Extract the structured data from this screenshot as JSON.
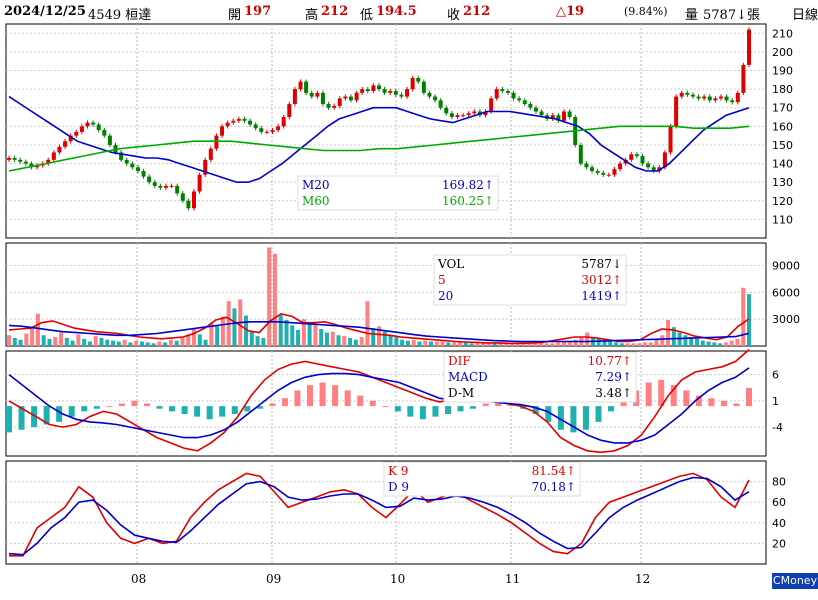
{
  "header": {
    "date": "2024/12/25",
    "stock": "4549 桓達",
    "open_label": "開",
    "open": "197",
    "high_label": "高",
    "high": "212",
    "low_label": "低",
    "low": "194.5",
    "close_label": "收",
    "close": "212",
    "change": "△19",
    "change_pct": "(9.84%)",
    "volume_label": "量",
    "volume": "5787↓張",
    "period": "日線"
  },
  "brand": "CMoney",
  "colors": {
    "up": "#e00000",
    "down": "#008000",
    "ma20": "#0000cc",
    "ma60": "#00aa00",
    "vol_up": "#ff8080",
    "vol_down": "#20b0b0",
    "macd_pos": "#ff8080",
    "macd_neg": "#20b0b0"
  },
  "chart_data": [
    {
      "type": "candlestick",
      "panel": "price",
      "x_ticks": [
        "08",
        "09",
        "10",
        "11",
        "12"
      ],
      "y_ticks": [
        110,
        120,
        130,
        140,
        150,
        160,
        170,
        180,
        190,
        200,
        210
      ],
      "ylim": [
        100,
        215
      ],
      "legend": [
        {
          "name": "M20",
          "value": "169.82↑"
        },
        {
          "name": "M60",
          "value": "160.25↑"
        }
      ],
      "close": [
        143,
        142,
        141,
        140,
        138,
        139,
        140,
        142,
        146,
        149,
        152,
        155,
        157,
        160,
        162,
        161,
        158,
        155,
        150,
        146,
        142,
        140,
        138,
        136,
        133,
        130,
        128,
        127,
        128,
        128,
        124,
        120,
        116,
        125,
        134,
        142,
        148,
        155,
        160,
        162,
        163,
        164,
        163,
        161,
        159,
        157,
        157,
        158,
        160,
        165,
        172,
        180,
        184,
        178,
        176,
        178,
        172,
        170,
        171,
        175,
        176,
        174,
        178,
        180,
        179,
        182,
        180,
        178,
        179,
        177,
        176,
        180,
        186,
        184,
        178,
        176,
        174,
        170,
        167,
        165,
        166,
        166,
        167,
        168,
        166,
        168,
        175,
        180,
        179,
        178,
        175,
        174,
        172,
        170,
        168,
        166,
        164,
        166,
        163,
        168,
        165,
        150,
        140,
        138,
        136,
        135,
        134,
        134,
        137,
        140,
        142,
        145,
        144,
        140,
        138,
        136,
        138,
        146,
        160,
        176,
        178,
        177,
        176,
        175,
        176,
        174,
        175,
        176,
        174,
        173,
        178,
        193,
        212
      ],
      "ma20": [
        176,
        172,
        168,
        164,
        160,
        156,
        152,
        150,
        148,
        146,
        145,
        144,
        143,
        143,
        142,
        140,
        138,
        136,
        134,
        132,
        130,
        130,
        132,
        136,
        140,
        145,
        150,
        155,
        160,
        164,
        166,
        168,
        170,
        170,
        170,
        168,
        166,
        164,
        163,
        162,
        164,
        166,
        168,
        168,
        168,
        167,
        166,
        165,
        164,
        162,
        160,
        156,
        150,
        146,
        142,
        138,
        136,
        136,
        140,
        146,
        152,
        158,
        162,
        166,
        168,
        170
      ],
      "ma60": [
        136,
        138,
        140,
        142,
        144,
        146,
        148,
        149,
        150,
        151,
        152,
        152,
        152,
        151,
        150,
        149,
        148,
        147,
        147,
        147,
        148,
        148,
        149,
        150,
        151,
        152,
        153,
        154,
        155,
        156,
        157,
        158,
        159,
        160,
        160,
        160,
        160,
        159,
        159,
        159,
        160
      ]
    },
    {
      "type": "bar",
      "panel": "volume",
      "y_ticks": [
        3000,
        6000,
        9000
      ],
      "legend": [
        {
          "name": "VOL",
          "value": "5787↓"
        },
        {
          "name": "5",
          "value": "3012↑"
        },
        {
          "name": "20",
          "value": "1419↑"
        }
      ],
      "values": [
        1200,
        900,
        700,
        1400,
        2000,
        3600,
        1200,
        800,
        1000,
        1500,
        900,
        600,
        1300,
        800,
        500,
        1100,
        900,
        700,
        600,
        500,
        700,
        400,
        600,
        500,
        400,
        300,
        500,
        400,
        700,
        600,
        900,
        1300,
        2000,
        1300,
        700,
        2600,
        2200,
        3300,
        5000,
        4200,
        5200,
        3400,
        1600,
        1100,
        900,
        11000,
        10300,
        3500,
        2900,
        2300,
        1800,
        3000,
        2600,
        2400,
        1900,
        1500,
        1600,
        1200,
        1100,
        900,
        700,
        1000,
        5000,
        2000,
        2200,
        1600,
        1200,
        1000,
        700,
        600,
        700,
        500,
        600,
        500,
        500,
        500,
        400,
        400,
        500,
        400,
        300,
        300,
        300,
        400,
        300,
        300,
        300,
        300,
        300,
        300,
        300,
        300,
        300,
        300,
        300,
        400,
        500,
        600,
        700,
        1000,
        1500,
        1000,
        800,
        600,
        500,
        400,
        300,
        300,
        300,
        300,
        400,
        400,
        700,
        1200,
        2900,
        2100,
        1500,
        1200,
        1000,
        800,
        600,
        500,
        400,
        300,
        400,
        600,
        800,
        6500,
        5787
      ],
      "ma5": [
        1800,
        1900,
        2000,
        2600,
        2800,
        2400,
        2000,
        1800,
        1600,
        1500,
        1400,
        1200,
        1000,
        900,
        800,
        900,
        1000,
        1400,
        2000,
        2900,
        3200,
        2500,
        1700,
        1500,
        2800,
        3600,
        3300,
        2600,
        2600,
        2700,
        2400,
        2000,
        1700,
        1400,
        1300,
        1200,
        1000,
        900,
        800,
        700,
        600,
        500,
        450,
        400,
        350,
        350,
        300,
        300,
        350,
        400,
        600,
        800,
        1000,
        1000,
        900,
        700,
        500,
        500,
        700,
        1400,
        1900,
        1800,
        1500,
        1100,
        900,
        700,
        1000,
        2200,
        3012
      ],
      "ma20": [
        2300,
        2200,
        2000,
        1800,
        1600,
        1500,
        1400,
        1300,
        1200,
        1200,
        1300,
        1400,
        1600,
        1800,
        2000,
        2200,
        2400,
        2600,
        2700,
        2700,
        2700,
        2600,
        2500,
        2400,
        2300,
        2200,
        2100,
        1900,
        1700,
        1500,
        1300,
        1100,
        1000,
        900,
        800,
        700,
        600,
        550,
        500,
        500,
        500,
        500,
        500,
        500,
        550,
        600,
        650,
        700,
        750,
        800,
        850,
        900,
        950,
        1000,
        1050,
        1419
      ]
    },
    {
      "type": "macd",
      "panel": "macd",
      "y_ticks": [
        -4,
        1,
        6
      ],
      "legend": [
        {
          "name": "DIF",
          "value": "10.77↑"
        },
        {
          "name": "MACD",
          "value": "7.29↑"
        },
        {
          "name": "D-M",
          "value": "3.48↑"
        }
      ],
      "dif": [
        1.0,
        -0.5,
        -2.0,
        -3.5,
        -4.0,
        -3.5,
        -2.0,
        -1.0,
        -1.5,
        -3.0,
        -4.5,
        -6.0,
        -7.0,
        -8.0,
        -8.5,
        -7.0,
        -5.0,
        -2.0,
        2.0,
        5.0,
        7.0,
        8.0,
        8.5,
        8.0,
        7.5,
        7.0,
        6.5,
        5.5,
        4.5,
        3.5,
        2.5,
        1.5,
        0.8,
        1.3,
        1.7,
        1.5,
        1.0,
        0.5,
        0.0,
        -1.0,
        -3.0,
        -6.0,
        -7.5,
        -8.5,
        -8.8,
        -8.5,
        -7.5,
        -5.5,
        -2.0,
        2.0,
        5.0,
        6.5,
        7.0,
        7.5,
        8.5,
        10.77
      ],
      "macd": [
        6.0,
        4.0,
        2.0,
        0.0,
        -1.5,
        -2.5,
        -3.0,
        -3.2,
        -3.5,
        -4.0,
        -4.5,
        -5.0,
        -5.5,
        -6.0,
        -6.0,
        -5.5,
        -4.5,
        -3.0,
        -1.0,
        1.0,
        3.0,
        4.5,
        5.5,
        6.0,
        6.2,
        6.2,
        6.0,
        5.5,
        5.0,
        4.5,
        3.5,
        2.5,
        1.5,
        1.2,
        1.2,
        1.0,
        0.8,
        0.5,
        0.3,
        -0.2,
        -1.0,
        -2.5,
        -4.0,
        -5.5,
        -6.5,
        -7.0,
        -7.0,
        -6.5,
        -5.5,
        -3.5,
        -1.5,
        1.0,
        3.0,
        4.5,
        5.5,
        7.29
      ],
      "histogram": [
        -5.0,
        -4.5,
        -4.0,
        -3.5,
        -3.0,
        -2.0,
        -1.0,
        -0.5,
        0.0,
        0.5,
        1.0,
        0.5,
        -0.5,
        -1.0,
        -1.5,
        -2.0,
        -2.5,
        -2.0,
        -1.5,
        -1.0,
        -0.5,
        0.5,
        1.5,
        3.0,
        4.0,
        4.5,
        4.0,
        3.0,
        2.0,
        1.0,
        0.0,
        -1.0,
        -2.0,
        -2.5,
        -2.0,
        -1.5,
        -1.0,
        -0.5,
        0.5,
        1.0,
        0.5,
        -0.5,
        -1.5,
        -3.0,
        -4.5,
        -5.0,
        -4.5,
        -3.0,
        -1.0,
        1.0,
        3.0,
        4.5,
        5.0,
        4.0,
        3.0,
        2.0,
        1.5,
        1.0,
        0.5,
        3.48
      ]
    },
    {
      "type": "line",
      "panel": "kd",
      "y_ticks": [
        20,
        40,
        60,
        80
      ],
      "ylim": [
        0,
        100
      ],
      "legend": [
        {
          "name": "K 9",
          "value": "81.54↑"
        },
        {
          "name": "D 9",
          "value": "70.18↑"
        }
      ],
      "k": [
        8,
        8,
        35,
        45,
        55,
        75,
        65,
        40,
        25,
        20,
        25,
        20,
        22,
        45,
        60,
        72,
        80,
        88,
        85,
        70,
        55,
        60,
        65,
        70,
        72,
        68,
        55,
        45,
        58,
        72,
        60,
        65,
        70,
        62,
        55,
        48,
        40,
        30,
        20,
        12,
        10,
        20,
        45,
        60,
        65,
        70,
        75,
        80,
        85,
        88,
        82,
        65,
        55,
        81.54
      ],
      "d": [
        10,
        9,
        20,
        35,
        45,
        60,
        62,
        52,
        38,
        28,
        25,
        22,
        21,
        32,
        45,
        58,
        68,
        78,
        80,
        75,
        65,
        62,
        63,
        66,
        68,
        68,
        62,
        55,
        56,
        64,
        62,
        63,
        66,
        64,
        60,
        55,
        48,
        40,
        30,
        22,
        15,
        16,
        30,
        45,
        55,
        62,
        68,
        74,
        80,
        84,
        83,
        75,
        62,
        70.18
      ]
    }
  ]
}
